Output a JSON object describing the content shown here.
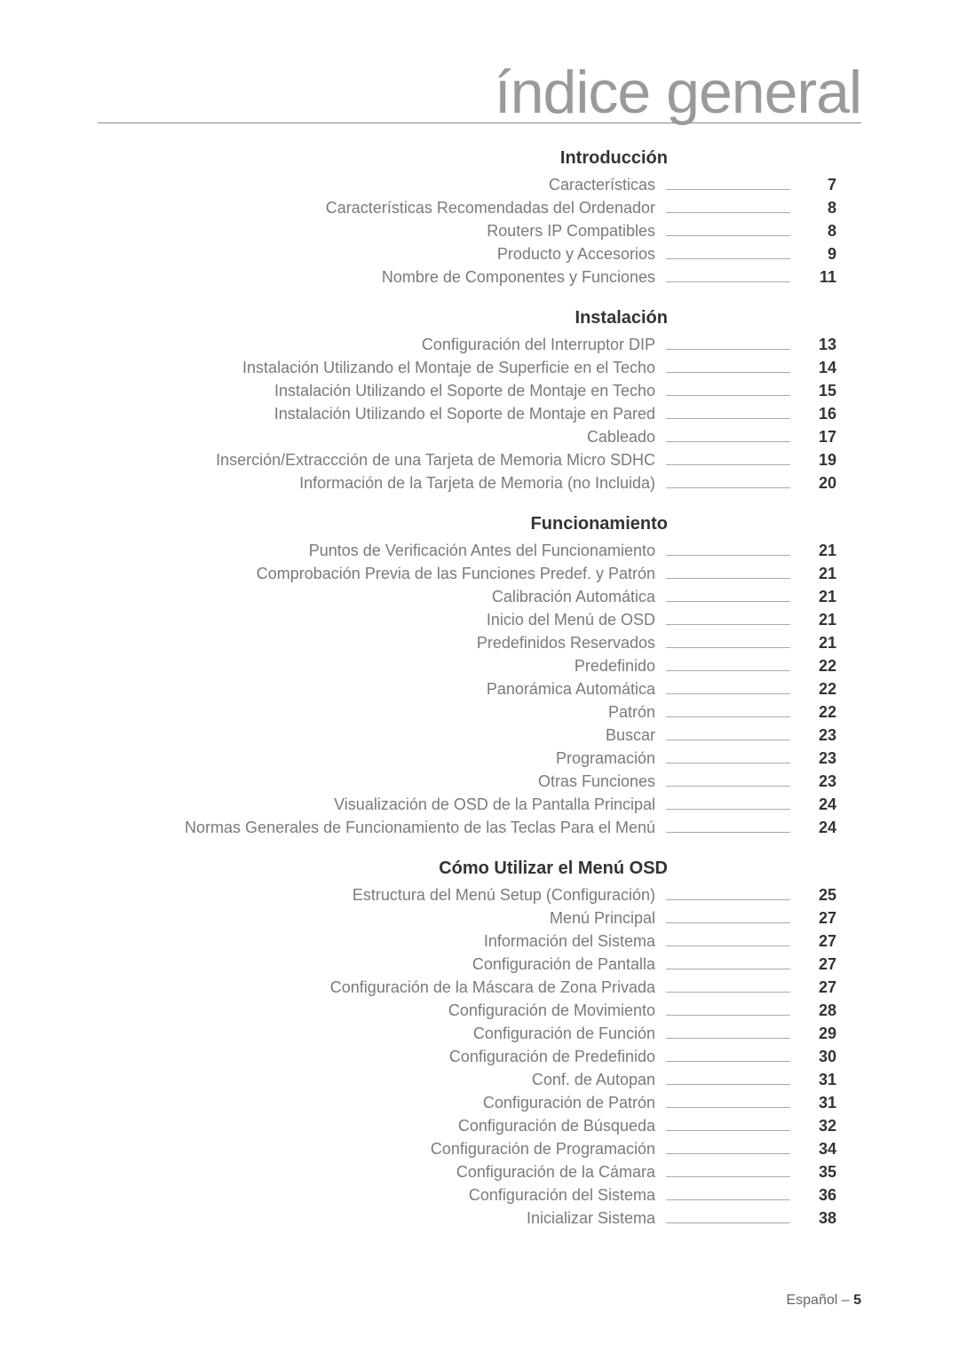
{
  "page_title": "índice general",
  "footer": {
    "language": "Español –",
    "page_number": "5"
  },
  "colors": {
    "title_color": "#9a9a9a",
    "label_color": "#7a7a7a",
    "page_color": "#333333",
    "leader_color": "#aaaaaa",
    "background": "#ffffff"
  },
  "typography": {
    "title_fontsize": 68,
    "heading_fontsize": 20,
    "row_fontsize": 18,
    "footer_fontsize": 16
  },
  "sections": [
    {
      "heading": "Introducción",
      "entries": [
        {
          "label": "Características",
          "page": "7"
        },
        {
          "label": "Características Recomendadas del Ordenador",
          "page": "8"
        },
        {
          "label": "Routers IP Compatibles",
          "page": "8"
        },
        {
          "label": "Producto y Accesorios",
          "page": "9"
        },
        {
          "label": "Nombre de Componentes y Funciones",
          "page": "11"
        }
      ]
    },
    {
      "heading": "Instalación",
      "entries": [
        {
          "label": "Configuración del Interruptor DIP",
          "page": "13"
        },
        {
          "label": "Instalación Utilizando el Montaje de Superficie en el Techo",
          "page": "14"
        },
        {
          "label": "Instalación Utilizando el Soporte de Montaje en Techo",
          "page": "15"
        },
        {
          "label": "Instalación Utilizando el Soporte de Montaje en Pared",
          "page": "16"
        },
        {
          "label": "Cableado",
          "page": "17"
        },
        {
          "label": "Inserción/Extraccción de una Tarjeta de Memoria Micro SDHC",
          "page": "19"
        },
        {
          "label": "Información de la Tarjeta de Memoria (no Incluida)",
          "page": "20"
        }
      ]
    },
    {
      "heading": "Funcionamiento",
      "entries": [
        {
          "label": "Puntos de Verificación Antes del Funcionamiento",
          "page": "21"
        },
        {
          "label": "Comprobación Previa de las Funciones Predef. y Patrón",
          "page": "21"
        },
        {
          "label": "Calibración Automática",
          "page": "21"
        },
        {
          "label": "Inicio del Menú de OSD",
          "page": "21"
        },
        {
          "label": "Predefinidos Reservados",
          "page": "21"
        },
        {
          "label": "Predefinido",
          "page": "22"
        },
        {
          "label": "Panorámica Automática",
          "page": "22"
        },
        {
          "label": "Patrón",
          "page": "22"
        },
        {
          "label": "Buscar",
          "page": "23"
        },
        {
          "label": "Programación",
          "page": "23"
        },
        {
          "label": "Otras Funciones",
          "page": "23"
        },
        {
          "label": "Visualización de OSD de la Pantalla Principal",
          "page": "24"
        },
        {
          "label": "Normas Generales de Funcionamiento de las Teclas Para el Menú",
          "page": "24"
        }
      ]
    },
    {
      "heading": "Cómo Utilizar el Menú OSD",
      "entries": [
        {
          "label": "Estructura del Menú Setup (Configuración)",
          "page": "25"
        },
        {
          "label": "Menú Principal",
          "page": "27"
        },
        {
          "label": "Información del Sistema",
          "page": "27"
        },
        {
          "label": "Configuración de Pantalla",
          "page": "27"
        },
        {
          "label": "Configuración de la Máscara de Zona Privada",
          "page": "27"
        },
        {
          "label": "Configuración de Movimiento",
          "page": "28"
        },
        {
          "label": "Configuración de Función",
          "page": "29"
        },
        {
          "label": "Configuración de Predefinido",
          "page": "30"
        },
        {
          "label": "Conf. de Autopan",
          "page": "31"
        },
        {
          "label": "Configuración de Patrón",
          "page": "31"
        },
        {
          "label": "Configuración de Búsqueda",
          "page": "32"
        },
        {
          "label": "Configuración de Programación",
          "page": "34"
        },
        {
          "label": "Configuración de la Cámara",
          "page": "35"
        },
        {
          "label": "Configuración del Sistema",
          "page": "36"
        },
        {
          "label": "Inicializar Sistema",
          "page": "38"
        }
      ]
    }
  ]
}
